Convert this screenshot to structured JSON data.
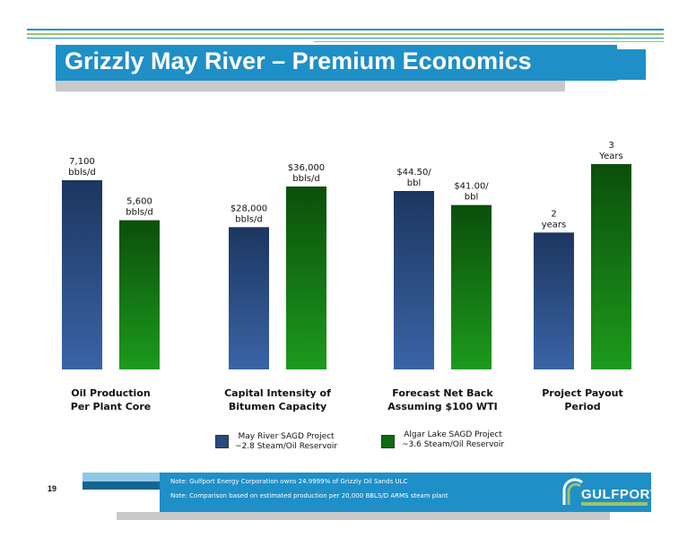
{
  "slide": {
    "title": "Grizzly May River – Premium Economics",
    "page_number": "19"
  },
  "colors": {
    "accent_blue": "#1f8fc8",
    "may_river_series": "#2a4a7e",
    "algar_lake_series": "#0e6b0e"
  },
  "chart_data": {
    "type": "bar",
    "categories": [
      {
        "label1": "Oil Production",
        "label2": "Per Plant Core"
      },
      {
        "label1": "Capital Intensity of",
        "label2": "Bitumen Capacity"
      },
      {
        "label1": "Forecast Net Back",
        "label2": "Assuming $100 WTI"
      },
      {
        "label1": "Project Payout",
        "label2": "Period"
      }
    ],
    "series": [
      {
        "name": "May River SAGD Project",
        "name2": "~2.8 Steam/Oil Reservoir"
      },
      {
        "name": "Algar Lake SAGD Project",
        "name2": "~3.6 Steam/Oil Reservoir"
      }
    ],
    "groups": [
      {
        "values": [
          7100,
          5600
        ],
        "max": 7100,
        "labels": [
          {
            "l1": "7,100",
            "l2": "bbls/d"
          },
          {
            "l1": "5,600",
            "l2": "bbls/d"
          }
        ]
      },
      {
        "values": [
          28000,
          36000
        ],
        "max": 36000,
        "labels": [
          {
            "l1": "$28,000",
            "l2": "bbls/d"
          },
          {
            "l1": "$36,000",
            "l2": "bbls/d"
          }
        ]
      },
      {
        "values": [
          44.5,
          41.0
        ],
        "max": 44.5,
        "labels": [
          {
            "l1": "$44.50/",
            "l2": "bbl"
          },
          {
            "l1": "$41.00/",
            "l2": "bbl"
          }
        ]
      },
      {
        "values": [
          2,
          3
        ],
        "max": 3,
        "labels": [
          {
            "l1": "2",
            "l2": "years"
          },
          {
            "l1": "3",
            "l2": "Years"
          }
        ]
      }
    ]
  },
  "footer": {
    "note1": "Note: Gulfport Energy Corporation owns 24.9999% of Grizzly Oil Sands ULC",
    "note2": "Note: Comparison based on estimated production per 20,000 BBLS/D ARMS steam plant",
    "logo": "GULFPORT"
  }
}
